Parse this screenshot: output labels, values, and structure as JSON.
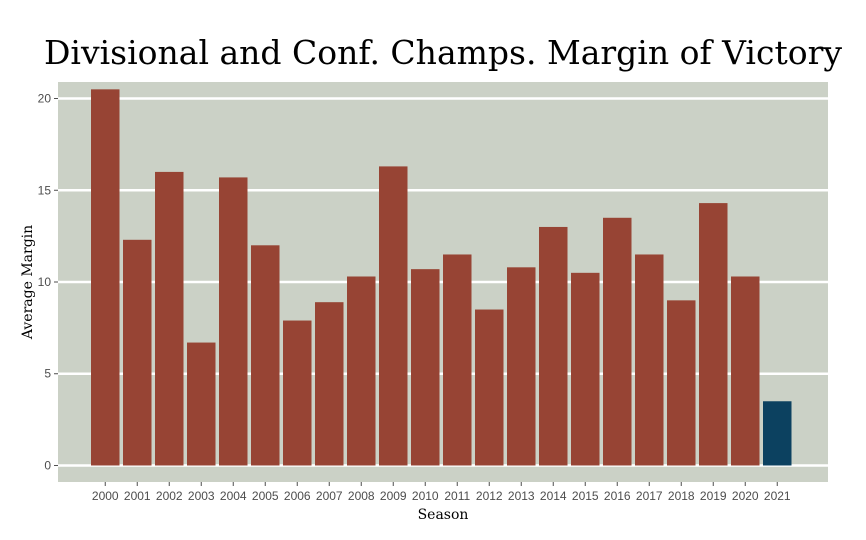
{
  "chart_data": {
    "type": "bar",
    "title": "Divisional and Conf. Champs. Margin of Victory",
    "xlabel": "Season",
    "ylabel": "Average Margin",
    "categories": [
      "2000",
      "2001",
      "2002",
      "2003",
      "2004",
      "2005",
      "2006",
      "2007",
      "2008",
      "2009",
      "2010",
      "2011",
      "2012",
      "2013",
      "2014",
      "2015",
      "2016",
      "2017",
      "2018",
      "2019",
      "2020",
      "2021"
    ],
    "values": [
      20.5,
      12.3,
      16.0,
      6.7,
      15.7,
      12.0,
      7.9,
      8.9,
      10.3,
      16.3,
      10.7,
      11.5,
      8.5,
      10.8,
      13.0,
      10.5,
      13.5,
      11.5,
      9.0,
      14.3,
      10.3,
      3.5
    ],
    "highlight_category": "2021",
    "ylim": [
      -0.9,
      20.9
    ],
    "yticks": [
      0,
      5,
      10,
      15,
      20
    ],
    "grid": true,
    "colors": {
      "bar": "#974434",
      "highlight": "#0c4160",
      "panel": "#cbd1c6",
      "grid": "#ffffff"
    }
  }
}
